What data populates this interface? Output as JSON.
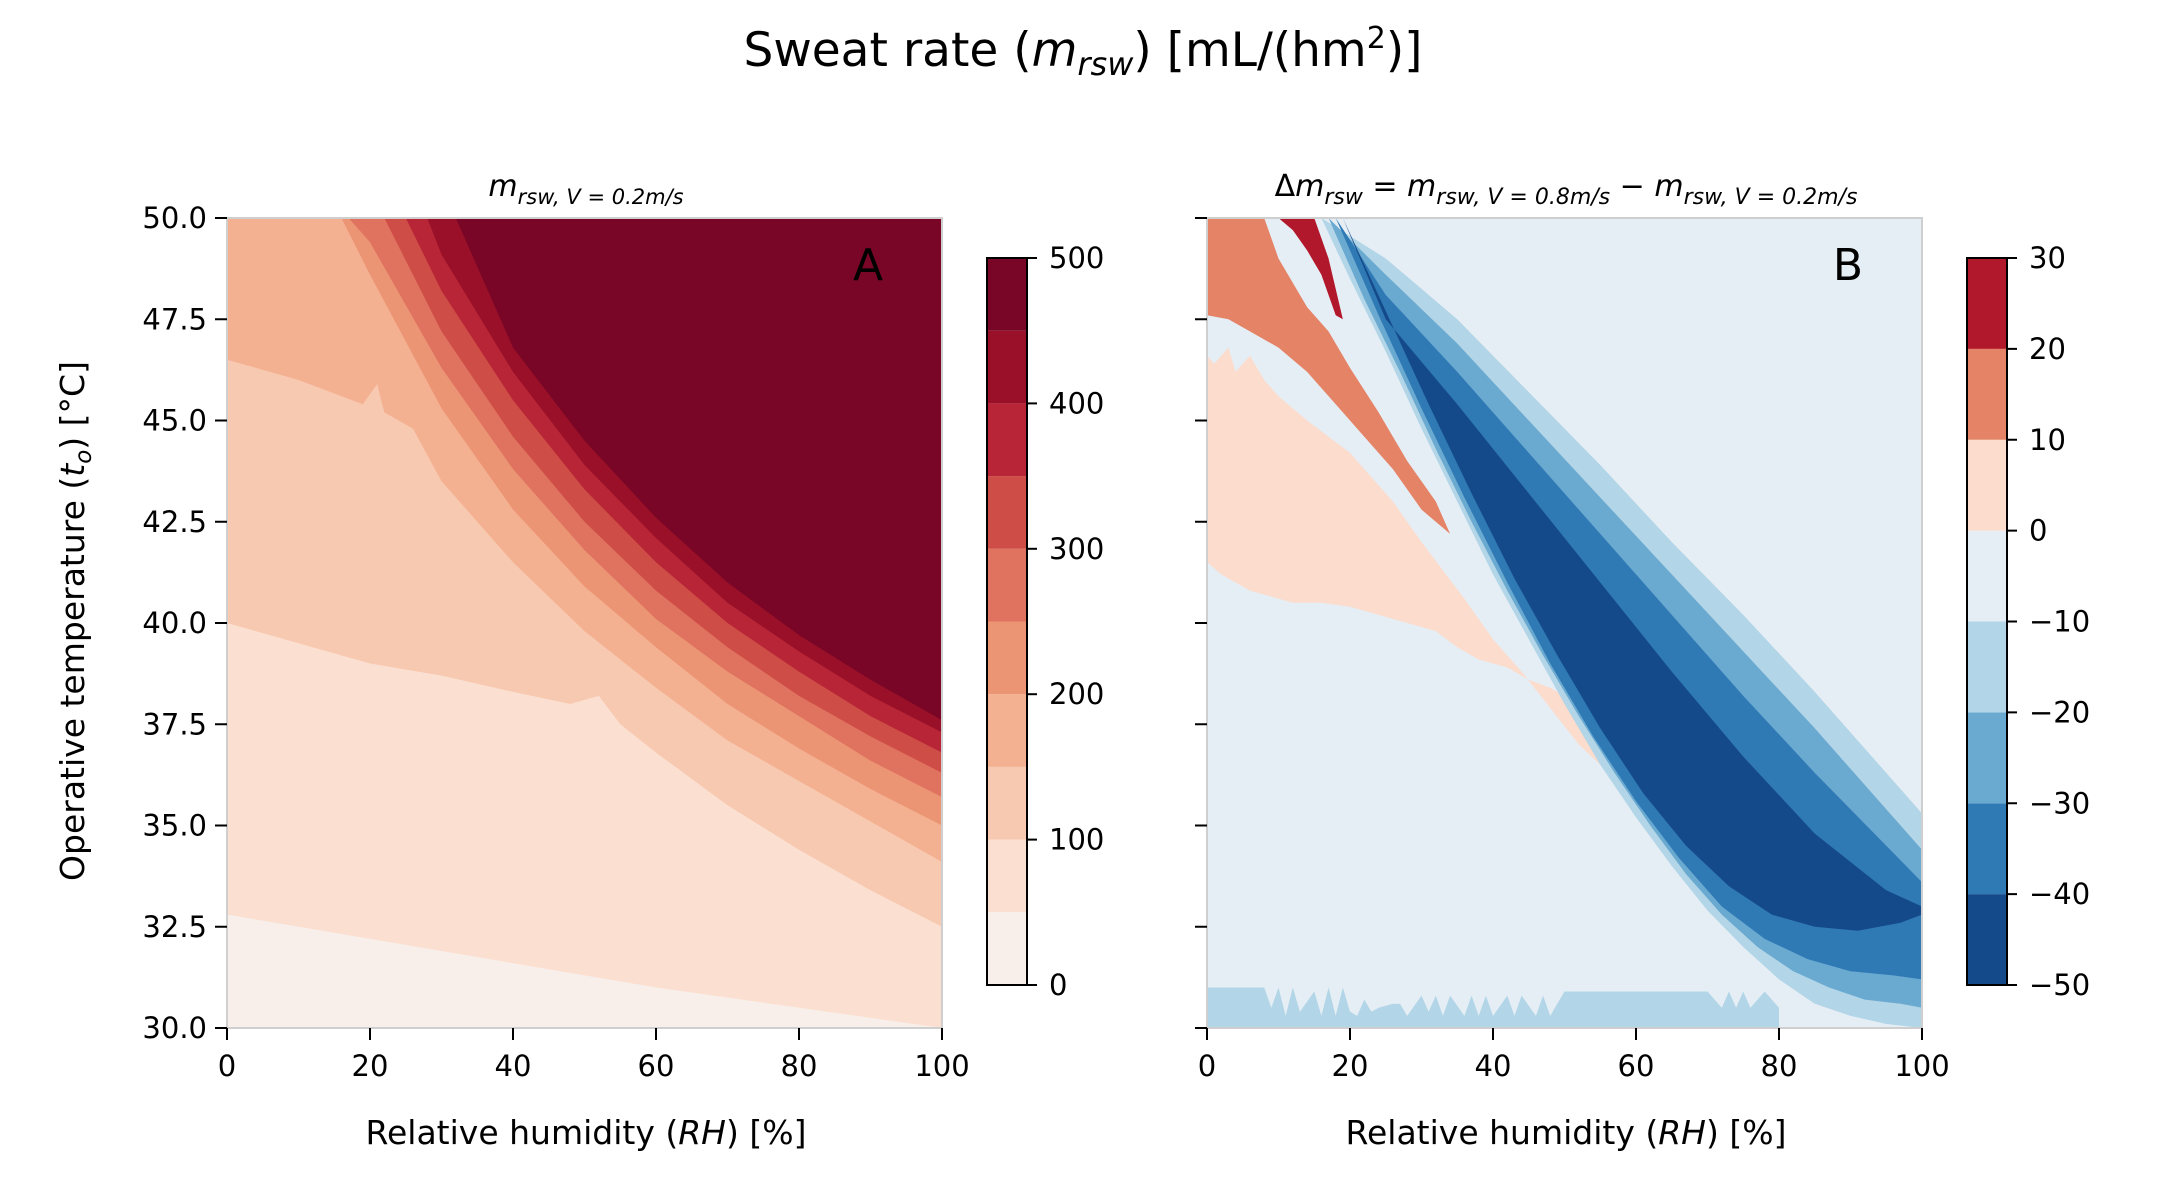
{
  "suptitle": {
    "text": "Sweat rate (",
    "symbol": "m",
    "symbol_sub": "rsw",
    "text2": ") [mL/(hm",
    "sup": "2",
    "text3": ")]"
  },
  "chart_data": [
    {
      "type": "heatmap",
      "panel_letter": "A",
      "title": {
        "m": "m",
        "sub": "rsw, V = 0.2m/s"
      },
      "xlabel": {
        "pre": "Relative humidity (",
        "sym": "RH",
        "post": ") [%]"
      },
      "ylabel": {
        "pre": "Operative temperature (",
        "sym": "t",
        "sub": "o",
        "post": ") [°C]"
      },
      "xlim": [
        0,
        100
      ],
      "ylim": [
        30,
        50
      ],
      "xticks": [
        "0",
        "20",
        "40",
        "60",
        "80",
        "100"
      ],
      "yticks": [
        "30.0",
        "32.5",
        "35.0",
        "37.5",
        "40.0",
        "42.5",
        "45.0",
        "47.5",
        "50.0"
      ],
      "show_yticklabels": true,
      "colorbar": {
        "ticks": [
          "0",
          "100",
          "200",
          "300",
          "400",
          "500"
        ],
        "levels": [
          0,
          50,
          100,
          150,
          200,
          250,
          300,
          350,
          400,
          450,
          500
        ],
        "colors": [
          "#f8efeb",
          "#fbe0d2",
          "#f8c9b1",
          "#f4b191",
          "#ec9575",
          "#e0735f",
          "#cf4d47",
          "#b82536",
          "#9a1029",
          "#790626"
        ]
      },
      "contour_boundaries": [
        {
          "level": 50,
          "x": [
            0,
            20,
            40,
            60,
            80,
            100
          ],
          "y": [
            32.8,
            32.2,
            31.6,
            31.0,
            30.5,
            30.0
          ]
        },
        {
          "level": 100,
          "x": [
            0,
            10,
            20,
            30,
            40,
            48,
            52,
            55,
            60,
            70,
            80,
            90,
            100
          ],
          "y": [
            40.0,
            39.5,
            39.0,
            38.7,
            38.3,
            38.0,
            38.2,
            37.5,
            36.8,
            35.5,
            34.4,
            33.4,
            32.5
          ]
        },
        {
          "level": 150,
          "x": [
            0,
            10,
            19,
            21,
            22,
            26,
            30,
            40,
            50,
            60,
            70,
            80,
            90,
            100
          ],
          "y": [
            46.5,
            46.0,
            45.4,
            45.9,
            45.2,
            44.8,
            43.5,
            41.5,
            39.8,
            38.4,
            37.1,
            36.1,
            35.1,
            34.1
          ]
        },
        {
          "level": 200,
          "x": [
            0,
            10,
            16,
            20,
            30,
            40,
            50,
            60,
            70,
            80,
            90,
            100
          ],
          "y": [
            50.0,
            50.0,
            50.0,
            48.6,
            45.3,
            42.8,
            40.9,
            39.4,
            38.0,
            36.9,
            35.9,
            35.0
          ]
        },
        {
          "level": 250,
          "x": [
            17,
            20,
            30,
            40,
            50,
            60,
            70,
            80,
            90,
            100
          ],
          "y": [
            50.0,
            49.4,
            46.3,
            43.8,
            41.8,
            40.1,
            38.8,
            37.7,
            36.6,
            35.7
          ]
        },
        {
          "level": 300,
          "x": [
            22,
            30,
            40,
            50,
            60,
            70,
            80,
            90,
            100
          ],
          "y": [
            50.0,
            47.2,
            44.6,
            42.5,
            40.8,
            39.4,
            38.2,
            37.2,
            36.3
          ]
        },
        {
          "level": 350,
          "x": [
            25,
            30,
            40,
            50,
            60,
            70,
            80,
            90,
            100
          ],
          "y": [
            50.0,
            48.2,
            45.5,
            43.3,
            41.5,
            40.0,
            38.8,
            37.7,
            36.8
          ]
        },
        {
          "level": 400,
          "x": [
            28,
            30,
            40,
            50,
            60,
            70,
            80,
            90,
            100
          ],
          "y": [
            50.0,
            49.1,
            46.2,
            43.9,
            42.1,
            40.5,
            39.3,
            38.2,
            37.3
          ]
        },
        {
          "level": 450,
          "x": [
            32,
            40,
            50,
            60,
            70,
            80,
            90,
            100
          ],
          "y": [
            50.0,
            46.8,
            44.5,
            42.6,
            41.0,
            39.7,
            38.6,
            37.6
          ]
        }
      ]
    },
    {
      "type": "heatmap",
      "panel_letter": "B",
      "title": {
        "delta": "Δ",
        "m1": "m",
        "sub1": "rsw",
        "eq": " = ",
        "m2": "m",
        "sub2": "rsw, V = 0.8m/s",
        "minus": " − ",
        "m3": "m",
        "sub3": "rsw, V = 0.2m/s"
      },
      "xlabel": {
        "pre": "Relative humidity (",
        "sym": "RH",
        "post": ") [%]"
      },
      "xlim": [
        0,
        100
      ],
      "ylim": [
        30,
        50
      ],
      "xticks": [
        "0",
        "20",
        "40",
        "60",
        "80",
        "100"
      ],
      "show_yticklabels": false,
      "colorbar": {
        "ticks": [
          "−50",
          "−40",
          "−30",
          "−20",
          "−10",
          "0",
          "10",
          "20",
          "30"
        ],
        "levels": [
          -50,
          -40,
          -30,
          -20,
          -10,
          0,
          10,
          20,
          30
        ],
        "colors": [
          "#154a8a",
          "#2f79b5",
          "#6aa9d0",
          "#b2d5e7",
          "#e6eef5",
          "#fbdccd",
          "#e58366",
          "#b2182b"
        ]
      },
      "regions": [
        {
          "level_range": [
            -10,
            0
          ],
          "note": "background"
        },
        {
          "level_range": [
            -20,
            -10
          ],
          "x": [
            0,
            8,
            9,
            10,
            11,
            12,
            13,
            15,
            16,
            17,
            18,
            19,
            20,
            21,
            22,
            23,
            24,
            26,
            27,
            28,
            30,
            31,
            32,
            33,
            34,
            36,
            37,
            38,
            39,
            40,
            42,
            43,
            44,
            46,
            47,
            48,
            50,
            52,
            55,
            60,
            70,
            72,
            73,
            74,
            75,
            76,
            78,
            80,
            80,
            0
          ],
          "y": [
            31.0,
            31.0,
            30.5,
            31.0,
            30.3,
            31.0,
            30.4,
            30.9,
            30.3,
            31.0,
            30.3,
            31.0,
            30.4,
            30.3,
            30.7,
            30.4,
            30.5,
            30.6,
            30.6,
            30.3,
            30.8,
            30.4,
            30.8,
            30.3,
            30.8,
            30.3,
            30.8,
            30.3,
            30.8,
            30.3,
            30.8,
            30.3,
            30.8,
            30.3,
            30.8,
            30.3,
            30.9,
            30.9,
            30.9,
            30.9,
            30.9,
            30.5,
            30.9,
            30.5,
            30.9,
            30.5,
            30.9,
            30.5,
            30.0,
            30.0
          ]
        },
        {
          "level_range": [
            0,
            10
          ],
          "x": [
            0,
            1,
            3,
            4,
            6,
            8,
            10,
            14,
            20,
            26,
            30,
            36,
            40,
            44,
            48,
            52,
            55,
            58,
            60,
            62,
            60,
            58,
            56,
            54,
            52,
            50,
            48,
            45,
            42,
            40,
            38,
            35,
            32,
            28,
            24,
            20,
            16,
            12,
            8,
            6,
            4,
            2,
            0
          ],
          "y": [
            46.6,
            46.4,
            46.8,
            46.2,
            46.6,
            46.0,
            45.6,
            45.0,
            44.2,
            43.0,
            42.0,
            40.6,
            39.6,
            38.8,
            37.9,
            37.0,
            36.5,
            35.8,
            35.2,
            34.8,
            36.0,
            36.4,
            36.8,
            37.5,
            37.8,
            38.2,
            38.4,
            38.6,
            38.9,
            39.0,
            39.1,
            39.4,
            39.8,
            40.0,
            40.2,
            40.4,
            40.5,
            40.5,
            40.7,
            40.8,
            41.0,
            41.2,
            41.5
          ]
        },
        {
          "level_range": [
            10,
            20
          ],
          "x": [
            0,
            8,
            10,
            14,
            17,
            20,
            24,
            28,
            32,
            34,
            30,
            26,
            22,
            18,
            14,
            10,
            6,
            3,
            0
          ],
          "y": [
            50.0,
            50.0,
            49.0,
            47.8,
            47.2,
            46.3,
            45.2,
            44.0,
            43.0,
            42.2,
            42.8,
            43.8,
            44.6,
            45.4,
            46.2,
            46.8,
            47.2,
            47.5,
            47.6
          ]
        },
        {
          "level_range": [
            20,
            30
          ],
          "x": [
            10,
            15,
            17,
            19,
            18,
            16,
            14,
            12,
            10
          ],
          "y": [
            50.0,
            50.0,
            49.0,
            47.5,
            47.6,
            48.6,
            49.2,
            49.7,
            50.0
          ]
        },
        {
          "level_range": [
            -20,
            -10
          ],
          "band": "outer",
          "upper": {
            "x": [
              16,
              25,
              35,
              45,
              55,
              65,
              75,
              85,
              95,
              100
            ],
            "y": [
              50.0,
              49.0,
              47.5,
              45.7,
              43.9,
              42.0,
              40.2,
              38.3,
              36.3,
              35.3
            ]
          },
          "lower": {
            "x": [
              16,
              20,
              25,
              30,
              35,
              40,
              45,
              50,
              55,
              60,
              65,
              70,
              75,
              80,
              85,
              90,
              95,
              100
            ],
            "y": [
              50.0,
              48.5,
              46.7,
              44.8,
              43.0,
              41.2,
              39.6,
              38.0,
              36.5,
              35.2,
              34.0,
              32.9,
              32.0,
              31.2,
              30.6,
              30.3,
              30.1,
              30.0
            ]
          }
        },
        {
          "level_range": [
            -30,
            -20
          ],
          "upper": {
            "x": [
              17,
              25,
              35,
              45,
              55,
              65,
              75,
              85,
              95,
              100
            ],
            "y": [
              50.0,
              48.6,
              46.9,
              45.0,
              43.1,
              41.2,
              39.3,
              37.4,
              35.4,
              34.4
            ]
          },
          "lower": {
            "x": [
              17,
              22,
              27,
              32,
              37,
              42,
              47,
              52,
              57,
              62,
              67,
              72,
              77,
              82,
              87,
              92,
              97,
              100
            ],
            "y": [
              50.0,
              48.0,
              46.2,
              44.3,
              42.5,
              40.8,
              39.2,
              37.7,
              36.3,
              35.0,
              33.8,
              32.8,
              32.0,
              31.4,
              31.0,
              30.7,
              30.6,
              30.5
            ]
          }
        },
        {
          "level_range": [
            -40,
            -30
          ],
          "upper": {
            "x": [
              18,
              25,
              35,
              45,
              55,
              65,
              75,
              85,
              95,
              100
            ],
            "y": [
              50.0,
              48.1,
              46.2,
              44.2,
              42.2,
              40.2,
              38.2,
              36.3,
              34.5,
              33.6
            ]
          },
          "lower": {
            "x": [
              18,
              24,
              30,
              36,
              42,
              48,
              54,
              60,
              66,
              72,
              78,
              84,
              90,
              96,
              100
            ],
            "y": [
              50.0,
              47.6,
              45.3,
              43.1,
              41.0,
              39.0,
              37.2,
              35.6,
              34.2,
              33.0,
              32.2,
              31.7,
              31.4,
              31.3,
              31.2
            ]
          }
        },
        {
          "level_range": [
            -50,
            -40
          ],
          "upper": {
            "x": [
              19,
              25,
              35,
              45,
              55,
              65,
              75,
              85,
              95,
              100
            ],
            "y": [
              50.0,
              47.5,
              45.4,
              43.2,
              41.0,
              38.8,
              36.7,
              34.8,
              33.4,
              33.0
            ]
          },
          "lower": {
            "x": [
              19,
              25,
              31,
              37,
              43,
              49,
              55,
              61,
              67,
              73,
              79,
              85,
              91,
              97,
              100
            ],
            "y": [
              50.0,
              47.7,
              45.4,
              43.2,
              41.1,
              39.2,
              37.4,
              35.8,
              34.5,
              33.5,
              32.8,
              32.5,
              32.4,
              32.6,
              32.8
            ]
          }
        }
      ]
    }
  ]
}
